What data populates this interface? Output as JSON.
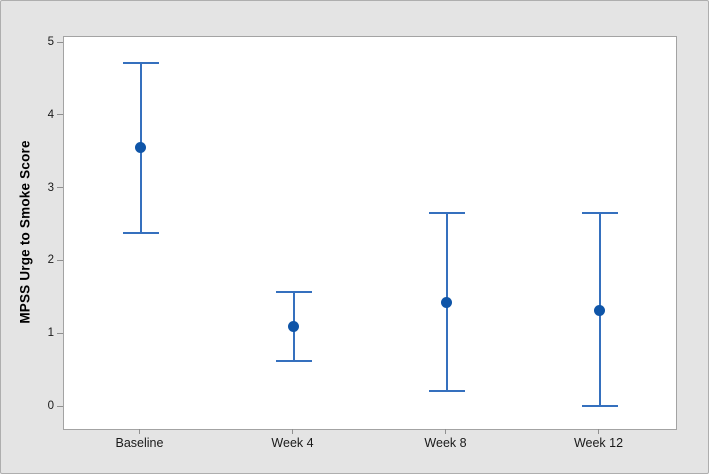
{
  "chart_data": {
    "type": "scatter",
    "error_bars": true,
    "title": "",
    "xlabel": "",
    "ylabel": "MPSS Urge to Smoke Score",
    "categories": [
      "Baseline",
      "Week 4",
      "Week 8",
      "Week 12"
    ],
    "series": [
      {
        "name": "MPSS Urge to Smoke Score",
        "means": [
          3.56,
          1.1,
          1.43,
          1.33
        ],
        "ci_lower": [
          2.39,
          0.63,
          0.22,
          0.01
        ],
        "ci_upper": [
          4.73,
          1.58,
          2.66,
          2.66
        ]
      }
    ],
    "ylim": [
      0,
      5
    ],
    "yticks": [
      0,
      1,
      2,
      3,
      4,
      5
    ],
    "grid": false,
    "legend": "none",
    "colors": {
      "marker": "#0f55a8",
      "interval_line": "#3570be",
      "plot_background": "#ffffff",
      "figure_background": "#e4e4e4",
      "axis_text": "#1a1a1a",
      "tick_mark": "#8f8f8f"
    }
  }
}
